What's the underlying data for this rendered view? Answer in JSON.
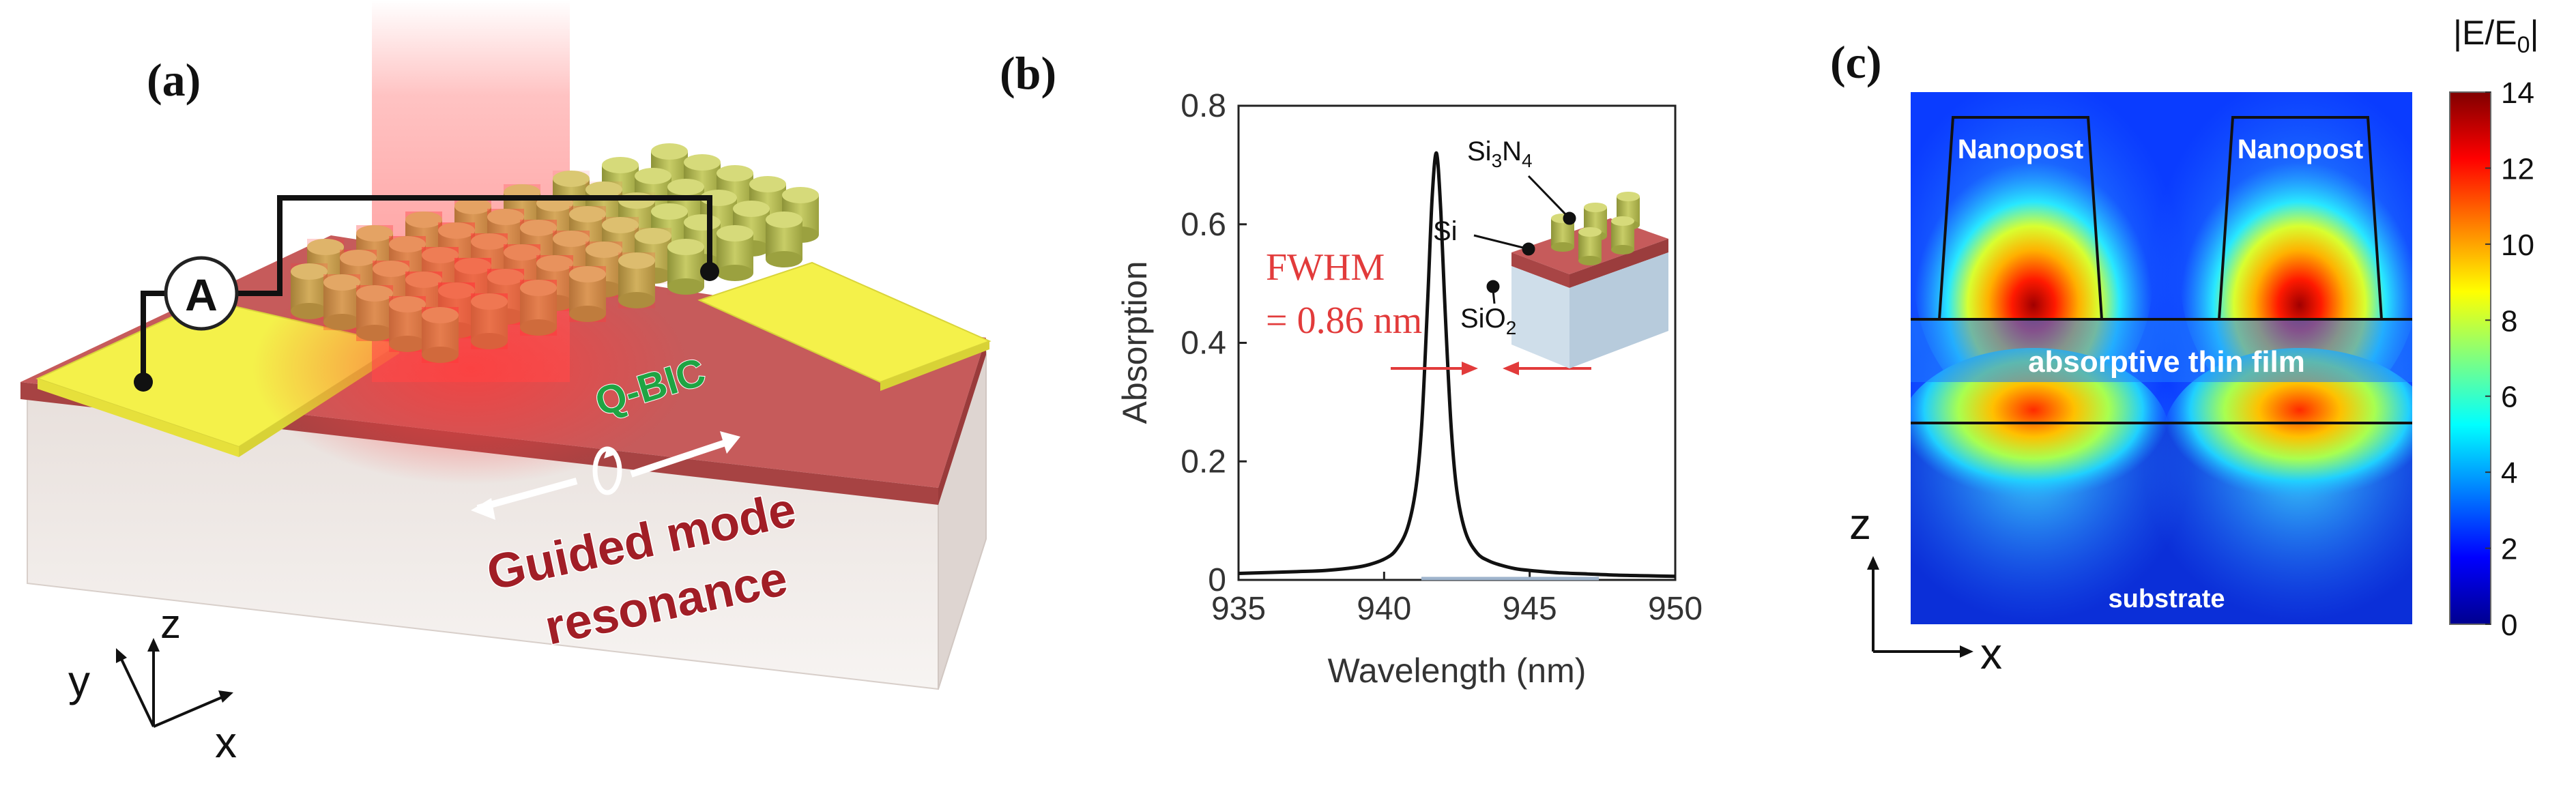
{
  "panel_a": {
    "label": "(a)",
    "ammeter": "A",
    "qbic": "Q-BIC",
    "guided_line1": "Guided mode",
    "guided_line2": "resonance",
    "axis_z": "z",
    "axis_y": "y",
    "axis_x": "x",
    "colors": {
      "electrode": "#f4f14a",
      "film": "#c65b5b",
      "substrate": "#efe9e6",
      "pillar": "#b8bd54",
      "beam": "#ff6a6a",
      "text_green": "#1fa443",
      "text_red": "#a11e26"
    }
  },
  "panel_b": {
    "label": "(b)",
    "fwhm_line1": "FWHM",
    "fwhm_line2": "= 0.86 nm",
    "inset_labels": {
      "si3n4": "Si3N4",
      "si": "Si",
      "sio2": "SiO2"
    }
  },
  "panel_c": {
    "label": "(c)",
    "colorbar_title": "|E/E0|",
    "colorbar_ticks": [
      "14",
      "12",
      "10",
      "8",
      "6",
      "4",
      "2",
      "0"
    ],
    "colorbar_range": [
      0,
      14
    ],
    "labels": {
      "nanopost_left": "Nanopost",
      "nanopost_right": "Nanopost",
      "film": "absorptive thin film",
      "substrate": "substrate"
    },
    "axis_z": "z",
    "axis_x": "x",
    "colormap": "jet"
  },
  "chart_data": {
    "type": "line",
    "xlabel": "Wavelength (nm)",
    "ylabel": "Absorption",
    "xlim": [
      935,
      950
    ],
    "ylim": [
      0,
      0.8
    ],
    "xticks": [
      "935",
      "940",
      "945",
      "950"
    ],
    "yticks": [
      "0",
      "0.2",
      "0.4",
      "0.6",
      "0.8"
    ],
    "series": [
      {
        "x": [
          935,
          937,
          938,
          939,
          939.5,
          940,
          940.4,
          940.8,
          941.1,
          941.3,
          941.5,
          941.65,
          941.8,
          941.95,
          942.1,
          942.3,
          942.5,
          942.8,
          943.2,
          943.6,
          944,
          944.5,
          945,
          946,
          947,
          948,
          949,
          950
        ],
        "y": [
          0.011,
          0.014,
          0.016,
          0.021,
          0.026,
          0.035,
          0.05,
          0.087,
          0.158,
          0.268,
          0.475,
          0.645,
          0.72,
          0.62,
          0.45,
          0.26,
          0.15,
          0.08,
          0.045,
          0.032,
          0.025,
          0.019,
          0.016,
          0.012,
          0.01,
          0.008,
          0.007,
          0.006
        ]
      }
    ],
    "grid": false
  }
}
